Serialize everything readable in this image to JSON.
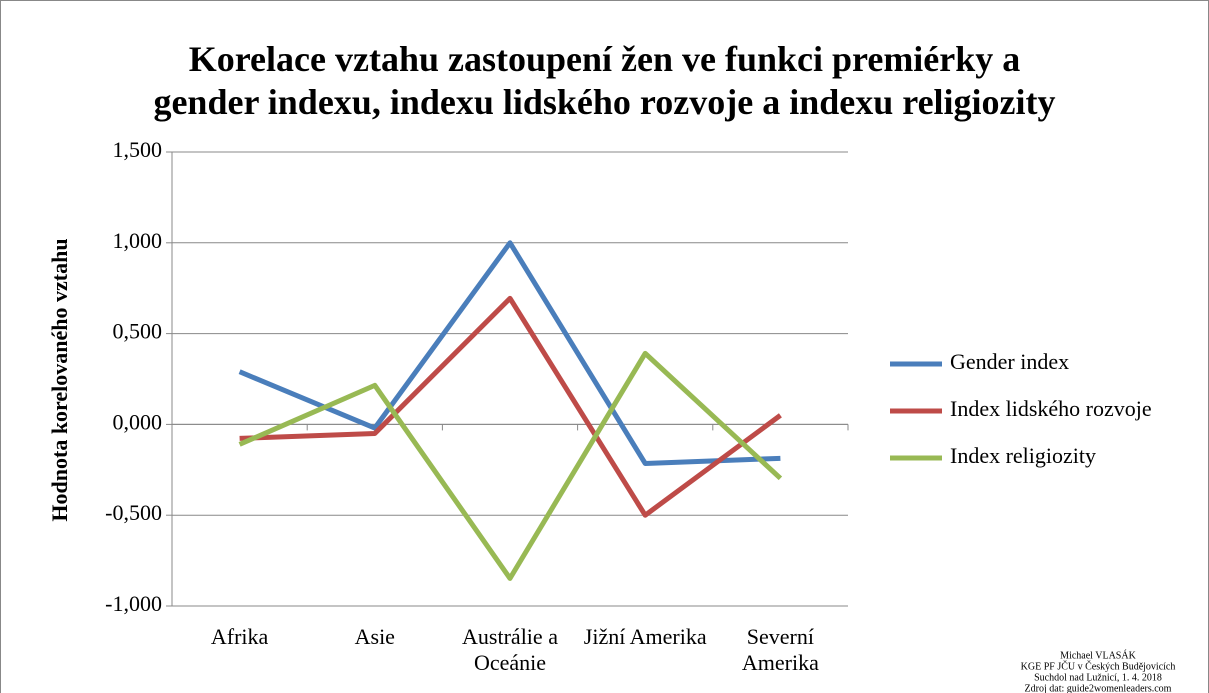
{
  "chart_data": {
    "type": "line",
    "title": "Korelace vztahu zastoupení žen ve funkci premiérky a gender indexu, indexu lidského rozvoje a indexu religiozity",
    "y_label": "Hodnota korelovaného vztahu",
    "categories": [
      "Afrika",
      "Asie",
      "Austrálie a Oceánie",
      "Jižní Amerika",
      "Severní Amerika"
    ],
    "series": [
      {
        "name": "Gender index",
        "color": "#4a7ebb",
        "values": [
          0.29,
          -0.02,
          1.0,
          -0.215,
          -0.187
        ]
      },
      {
        "name": "Index lidského rozvoje",
        "color": "#be4b48",
        "values": [
          -0.077,
          -0.05,
          0.694,
          -0.5,
          0.05
        ]
      },
      {
        "name": "Index religiozity",
        "color": "#98b954",
        "values": [
          -0.11,
          0.215,
          -0.848,
          0.391,
          -0.297
        ]
      }
    ],
    "ylim": [
      -1,
      1.5
    ],
    "yticks": [
      {
        "value": -1,
        "label": "-1,000"
      },
      {
        "value": -0.5,
        "label": "-0,500"
      },
      {
        "value": 0,
        "label": "0,000"
      },
      {
        "value": 0.5,
        "label": "0,500"
      },
      {
        "value": 1,
        "label": "1,000"
      },
      {
        "value": 1.5,
        "label": "1,500"
      }
    ],
    "grid": true,
    "legend": "right",
    "notes": [
      "Michael VLASÁK",
      "KGE PF JČU v Českých Budějovicích",
      "Suchdol nad Lužnicí, 1. 4. 2018",
      "Zdroj dat: guide2womenleaders.com"
    ]
  }
}
